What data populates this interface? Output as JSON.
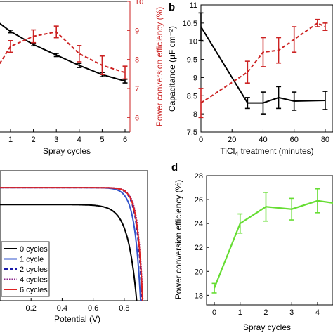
{
  "panels": {
    "b": "b",
    "d": "d"
  },
  "chart_data": [
    {
      "type": "line",
      "panel": "a",
      "x": [
        0,
        1,
        2,
        3,
        4,
        5,
        6
      ],
      "xticks": [
        "1",
        "2",
        "3",
        "4",
        "5",
        "6"
      ],
      "xlabel": "Spray cycles",
      "xlim": [
        0,
        6
      ],
      "left_axis": {
        "ylim": [
          6,
          11
        ],
        "color": "#000000"
      },
      "right_axis": {
        "label": "Power conversion efficiency (%)",
        "ylim": [
          5.5,
          10
        ],
        "ticks": [
          "6",
          "7",
          "8",
          "9",
          "10"
        ],
        "color": "#cc2222"
      },
      "series": [
        {
          "axis": "left",
          "style": "solid",
          "color": "#000000",
          "x": [
            0,
            1,
            2,
            3,
            4,
            5,
            6
          ],
          "values": [
            10.5,
            9.85,
            9.35,
            8.95,
            8.55,
            8.2,
            7.95
          ],
          "err": [
            0.05,
            0.05,
            0.05,
            0.06,
            0.08,
            0.08,
            0.07
          ]
        },
        {
          "axis": "right",
          "style": "dashed",
          "color": "#cc2222",
          "x": [
            0,
            1,
            2,
            3,
            4,
            5,
            6
          ],
          "values": [
            7.2,
            8.45,
            8.8,
            8.95,
            8.2,
            7.8,
            7.55
          ],
          "err": [
            0.15,
            0.2,
            0.22,
            0.2,
            0.28,
            0.32,
            0.22
          ]
        }
      ]
    },
    {
      "type": "line",
      "panel": "b",
      "x": [
        0,
        30,
        40,
        50,
        60,
        75,
        80
      ],
      "xticks": [
        "0",
        "20",
        "40",
        "60",
        "80"
      ],
      "xlabel": "TiCl4 treatment (minutes)",
      "xlim": [
        0,
        85
      ],
      "ylabel": "Capacitance (µF cm⁻²)",
      "ylim": [
        7.5,
        11
      ],
      "yticks": [
        "7.5",
        "8",
        "8.5",
        "9",
        "9.5",
        "10",
        "10.5",
        "11"
      ],
      "series": [
        {
          "style": "solid",
          "color": "#000000",
          "x": [
            0,
            30,
            40,
            50,
            60,
            80
          ],
          "values": [
            10.4,
            8.3,
            8.3,
            8.45,
            8.35,
            8.37
          ],
          "err": [
            0.38,
            0.15,
            0.3,
            0.3,
            0.25,
            0.25
          ]
        },
        {
          "style": "dashed",
          "color": "#cc2222",
          "x": [
            0,
            30,
            40,
            50,
            60,
            75,
            80
          ],
          "values": [
            8.3,
            9.15,
            9.7,
            9.75,
            10.05,
            10.5,
            10.4
          ],
          "err": [
            0.4,
            0.3,
            0.4,
            0.35,
            0.35,
            0.1,
            0.1
          ]
        }
      ]
    },
    {
      "type": "line",
      "panel": "c",
      "xlabel": "Potential (V)",
      "xlim": [
        0,
        0.95
      ],
      "xticks": [
        "0.2",
        "0.4",
        "0.6",
        "0.8"
      ],
      "ylim": [
        0,
        1.15
      ],
      "legend": {
        "placement": "lower-left",
        "entries": [
          "0 cycles",
          "1 cycle",
          "2 cycles",
          "4 cycles",
          "6 cycles"
        ]
      },
      "series": [
        {
          "name": "0 cycles",
          "style": "solid",
          "color": "#000000",
          "isc": 0.85,
          "voc": 0.88,
          "n": 2.2
        },
        {
          "name": "1 cycle",
          "style": "solid",
          "color": "#3355cc",
          "isc": 1.0,
          "voc": 0.905,
          "n": 1.5
        },
        {
          "name": "2 cycles",
          "style": "dashed",
          "color": "#1a1aaa",
          "isc": 1.0,
          "voc": 0.915,
          "n": 1.3
        },
        {
          "name": "4 cycles",
          "style": "dotted",
          "color": "#882288",
          "isc": 1.0,
          "voc": 0.92,
          "n": 1.25
        },
        {
          "name": "6 cycles",
          "style": "solid",
          "color": "#dd2222",
          "isc": 1.0,
          "voc": 0.918,
          "n": 1.28
        }
      ]
    },
    {
      "type": "line",
      "panel": "d",
      "x": [
        0,
        1,
        2,
        3,
        4,
        5
      ],
      "xticks": [
        "0",
        "1",
        "2",
        "3",
        "4"
      ],
      "xlabel": "Spray cycles",
      "xlim": [
        -0.3,
        4.6
      ],
      "ylabel": "Power conversion efficiency (%)",
      "ylim": [
        17.2,
        28
      ],
      "yticks": [
        "18",
        "20",
        "22",
        "24",
        "26",
        "28"
      ],
      "series": [
        {
          "style": "solid",
          "color": "#66dd33",
          "x": [
            0,
            1,
            2,
            3,
            4,
            5
          ],
          "values": [
            18.6,
            24.0,
            25.4,
            25.2,
            25.9,
            25.6
          ],
          "err": [
            0.4,
            0.8,
            1.2,
            0.9,
            1.0,
            0.8
          ]
        }
      ]
    }
  ]
}
